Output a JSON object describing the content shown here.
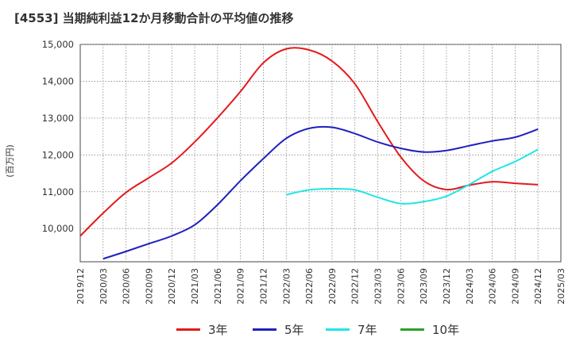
{
  "chart_data": {
    "type": "line",
    "title": "[4553]  当期純利益12か月移動合計の平均値の推移",
    "ylabel": "(百万円)",
    "xlabel": "",
    "ylim": [
      9100,
      15000
    ],
    "y_ticks": [
      "10,000",
      "11,000",
      "12,000",
      "13,000",
      "14,000",
      "15,000"
    ],
    "y_tick_values": [
      10000,
      11000,
      12000,
      13000,
      14000,
      15000
    ],
    "x_ticks": [
      "2019/12",
      "2020/03",
      "2020/06",
      "2020/09",
      "2020/12",
      "2021/03",
      "2021/06",
      "2021/09",
      "2021/12",
      "2022/03",
      "2022/06",
      "2022/09",
      "2022/12",
      "2023/03",
      "2023/06",
      "2023/09",
      "2023/12",
      "2024/03",
      "2024/06",
      "2024/09",
      "2024/12",
      "2025/03"
    ],
    "grid": true,
    "legend_position": "bottom",
    "series": [
      {
        "name": "3年",
        "color": "#e31a1c",
        "points": [
          [
            "2019/12",
            9800
          ],
          [
            "2020/03",
            10420
          ],
          [
            "2020/06",
            10980
          ],
          [
            "2020/09",
            11380
          ],
          [
            "2020/12",
            11780
          ],
          [
            "2021/03",
            12350
          ],
          [
            "2021/06",
            13010
          ],
          [
            "2021/09",
            13720
          ],
          [
            "2021/12",
            14500
          ],
          [
            "2022/03",
            14880
          ],
          [
            "2022/06",
            14850
          ],
          [
            "2022/09",
            14550
          ],
          [
            "2022/12",
            13930
          ],
          [
            "2023/03",
            12900
          ],
          [
            "2023/06",
            11950
          ],
          [
            "2023/09",
            11300
          ],
          [
            "2023/12",
            11060
          ],
          [
            "2024/03",
            11180
          ],
          [
            "2024/06",
            11270
          ],
          [
            "2024/09",
            11230
          ],
          [
            "2024/12",
            11190
          ]
        ]
      },
      {
        "name": "5年",
        "color": "#1f1fbf",
        "points": [
          [
            "2020/03",
            9180
          ],
          [
            "2020/06",
            9380
          ],
          [
            "2020/09",
            9590
          ],
          [
            "2020/12",
            9800
          ],
          [
            "2021/03",
            10100
          ],
          [
            "2021/06",
            10650
          ],
          [
            "2021/09",
            11300
          ],
          [
            "2021/12",
            11900
          ],
          [
            "2022/03",
            12450
          ],
          [
            "2022/06",
            12720
          ],
          [
            "2022/09",
            12750
          ],
          [
            "2022/12",
            12580
          ],
          [
            "2023/03",
            12350
          ],
          [
            "2023/06",
            12180
          ],
          [
            "2023/09",
            12080
          ],
          [
            "2023/12",
            12120
          ],
          [
            "2024/03",
            12250
          ],
          [
            "2024/06",
            12380
          ],
          [
            "2024/09",
            12480
          ],
          [
            "2024/12",
            12700
          ]
        ]
      },
      {
        "name": "7年",
        "color": "#22e5e5",
        "points": [
          [
            "2022/03",
            10920
          ],
          [
            "2022/06",
            11050
          ],
          [
            "2022/09",
            11080
          ],
          [
            "2022/12",
            11050
          ],
          [
            "2023/03",
            10850
          ],
          [
            "2023/06",
            10680
          ],
          [
            "2023/09",
            10730
          ],
          [
            "2023/12",
            10880
          ],
          [
            "2024/03",
            11200
          ],
          [
            "2024/06",
            11550
          ],
          [
            "2024/09",
            11820
          ],
          [
            "2024/12",
            12150
          ]
        ]
      },
      {
        "name": "10年",
        "color": "#2ca02c",
        "points": []
      }
    ]
  }
}
